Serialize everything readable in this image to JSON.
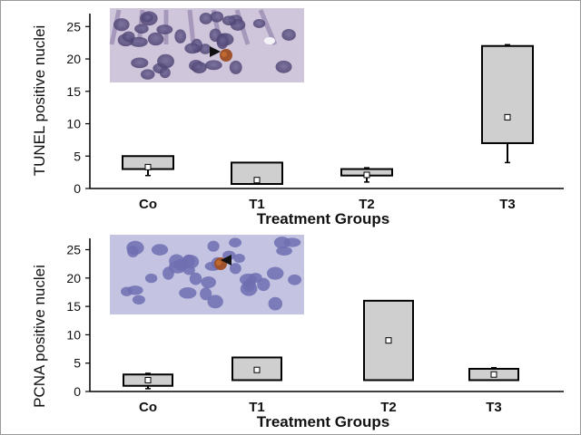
{
  "chart_data": [
    {
      "type": "box",
      "title": "",
      "xlabel": "Treatment Groups",
      "ylabel": "TUNEL positive nuclei",
      "ylim": [
        0,
        27
      ],
      "yticks": [
        "0",
        "5",
        "10",
        "15",
        "20",
        "25"
      ],
      "categories": [
        "Co",
        "T1",
        "T2",
        "T3"
      ],
      "boxes": [
        {
          "category": "Co",
          "whisker_low": 2,
          "q1": 3,
          "median": 3.3,
          "q3": 5,
          "whisker_high": 5
        },
        {
          "category": "T1",
          "whisker_low": 0.7,
          "q1": 0.7,
          "median": 1.3,
          "q3": 4,
          "whisker_high": 4
        },
        {
          "category": "T2",
          "whisker_low": 1,
          "q1": 2,
          "median": 2.1,
          "q3": 3,
          "whisker_high": 3.2
        },
        {
          "category": "T3",
          "whisker_low": 4,
          "q1": 7,
          "median": 11,
          "q3": 22,
          "whisker_high": 22.2
        }
      ],
      "inset": "TUNEL-stained tissue micrograph"
    },
    {
      "type": "box",
      "title": "",
      "xlabel": "Treatment Groups",
      "ylabel": "PCNA positive nuclei",
      "ylim": [
        0,
        27
      ],
      "yticks": [
        "0",
        "5",
        "10",
        "15",
        "20",
        "25"
      ],
      "categories": [
        "Co",
        "T1",
        "T2",
        "T3"
      ],
      "boxes": [
        {
          "category": "Co",
          "whisker_low": 0.5,
          "q1": 1,
          "median": 2,
          "q3": 3,
          "whisker_high": 3.2
        },
        {
          "category": "T1",
          "whisker_low": 2,
          "q1": 2,
          "median": 3.8,
          "q3": 6,
          "whisker_high": 6
        },
        {
          "category": "T2",
          "whisker_low": 2,
          "q1": 2,
          "median": 9,
          "q3": 16,
          "whisker_high": 16
        },
        {
          "category": "T3",
          "whisker_low": 2,
          "q1": 2,
          "median": 3,
          "q3": 4,
          "whisker_high": 4.2
        }
      ],
      "inset": "PCNA-stained tissue micrograph"
    }
  ]
}
